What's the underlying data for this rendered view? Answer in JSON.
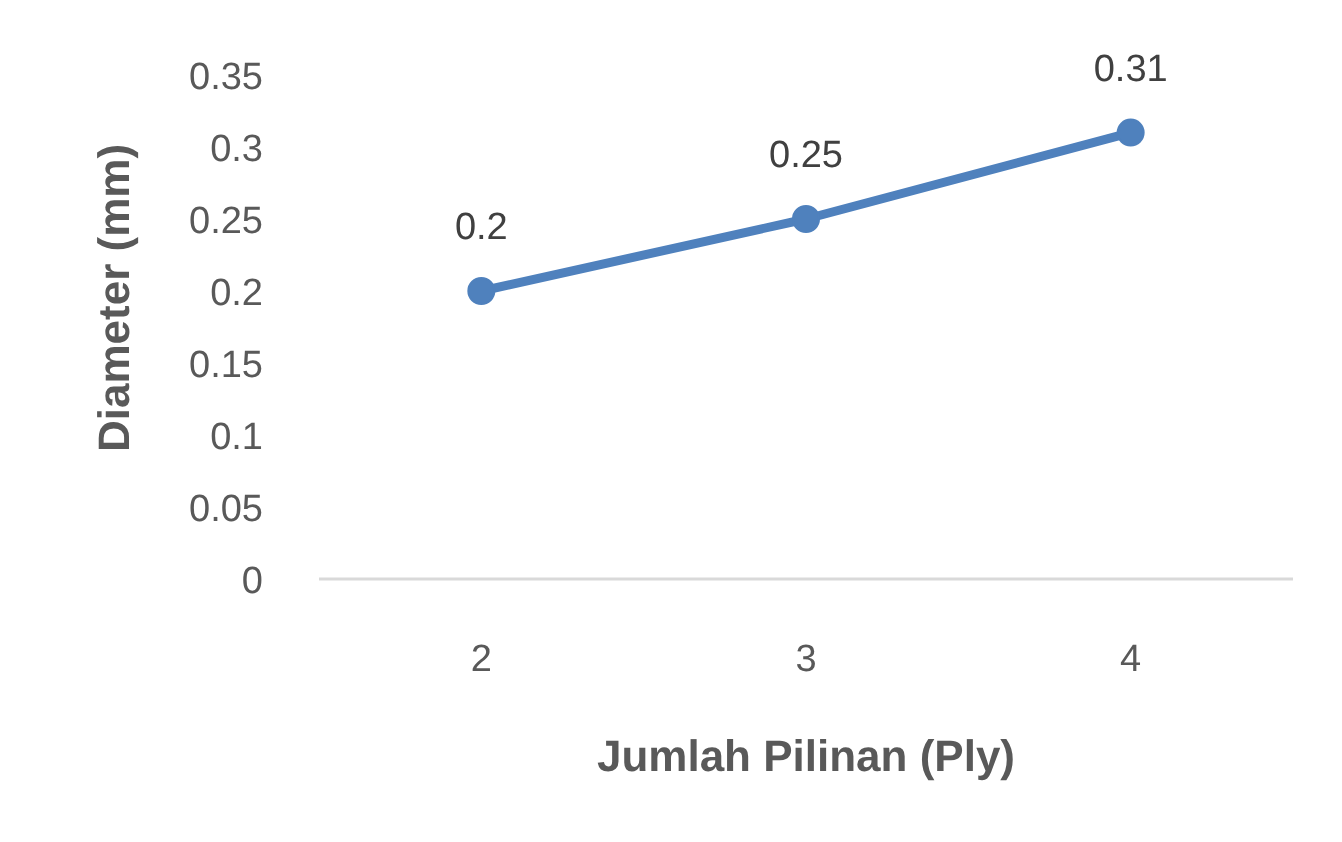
{
  "chart_data": {
    "type": "line",
    "xlabel": "Jumlah Pilinan (Ply)",
    "ylabel": "Diameter (mm)",
    "categories": [
      "2",
      "3",
      "4"
    ],
    "series": [
      {
        "color": "#4f81bd",
        "values": [
          0.2,
          0.25,
          0.31
        ]
      }
    ],
    "ylim": [
      0,
      0.35
    ],
    "yticks": [
      0,
      0.05,
      0.1,
      0.15,
      0.2,
      0.25,
      0.3,
      0.35
    ],
    "data_labels": true,
    "marker": "circle",
    "line_style": "solid"
  }
}
